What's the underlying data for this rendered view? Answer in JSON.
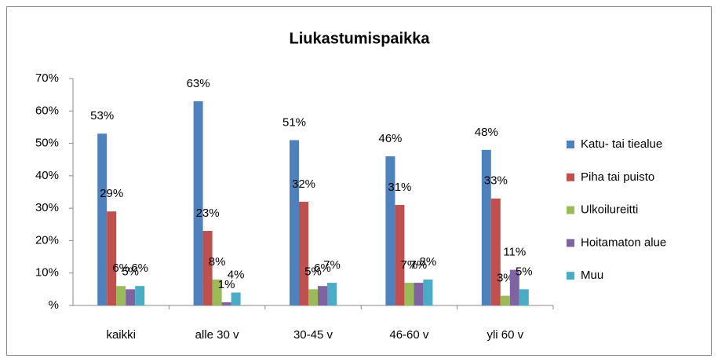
{
  "chart_data": {
    "type": "bar",
    "title": "Liukastumispaikka",
    "categories": [
      "kaikki",
      "alle 30 v",
      "30-45 v",
      "46-60 v",
      "yli 60 v"
    ],
    "series": [
      {
        "name": "Katu- tai tiealue",
        "color": "#4f81bd",
        "values": [
          53,
          63,
          51,
          46,
          48
        ],
        "value_labels": [
          "53%",
          "63%",
          "51%",
          "46%",
          "48%"
        ]
      },
      {
        "name": "Piha tai puisto",
        "color": "#c0504d",
        "values": [
          29,
          23,
          32,
          31,
          33
        ],
        "value_labels": [
          "29%",
          "23%",
          "32%",
          "31%",
          "33%"
        ]
      },
      {
        "name": "Ulkoilureitti",
        "color": "#9bbb59",
        "values": [
          6,
          8,
          5,
          7,
          3
        ],
        "value_labels": [
          "6%",
          "8%",
          "5%",
          "7%",
          "3%"
        ]
      },
      {
        "name": "Hoitamaton alue",
        "color": "#8064a2",
        "values": [
          5,
          1,
          6,
          7,
          11
        ],
        "value_labels": [
          "5%",
          "1%",
          "6%",
          "7%",
          "11%"
        ]
      },
      {
        "name": "Muu",
        "color": "#4bacc6",
        "values": [
          6,
          4,
          7,
          8,
          5
        ],
        "value_labels": [
          "6%",
          "4%",
          "7%",
          "8%",
          "5%"
        ]
      }
    ],
    "ylim": [
      0,
      70
    ],
    "yticks": [
      {
        "value": 0,
        "label": "%"
      },
      {
        "value": 10,
        "label": "10%"
      },
      {
        "value": 20,
        "label": "20%"
      },
      {
        "value": 30,
        "label": "30%"
      },
      {
        "value": 40,
        "label": "40%"
      },
      {
        "value": 50,
        "label": "50%"
      },
      {
        "value": 60,
        "label": "60%"
      },
      {
        "value": 70,
        "label": "70%"
      }
    ],
    "grid": false,
    "legend": "right"
  }
}
